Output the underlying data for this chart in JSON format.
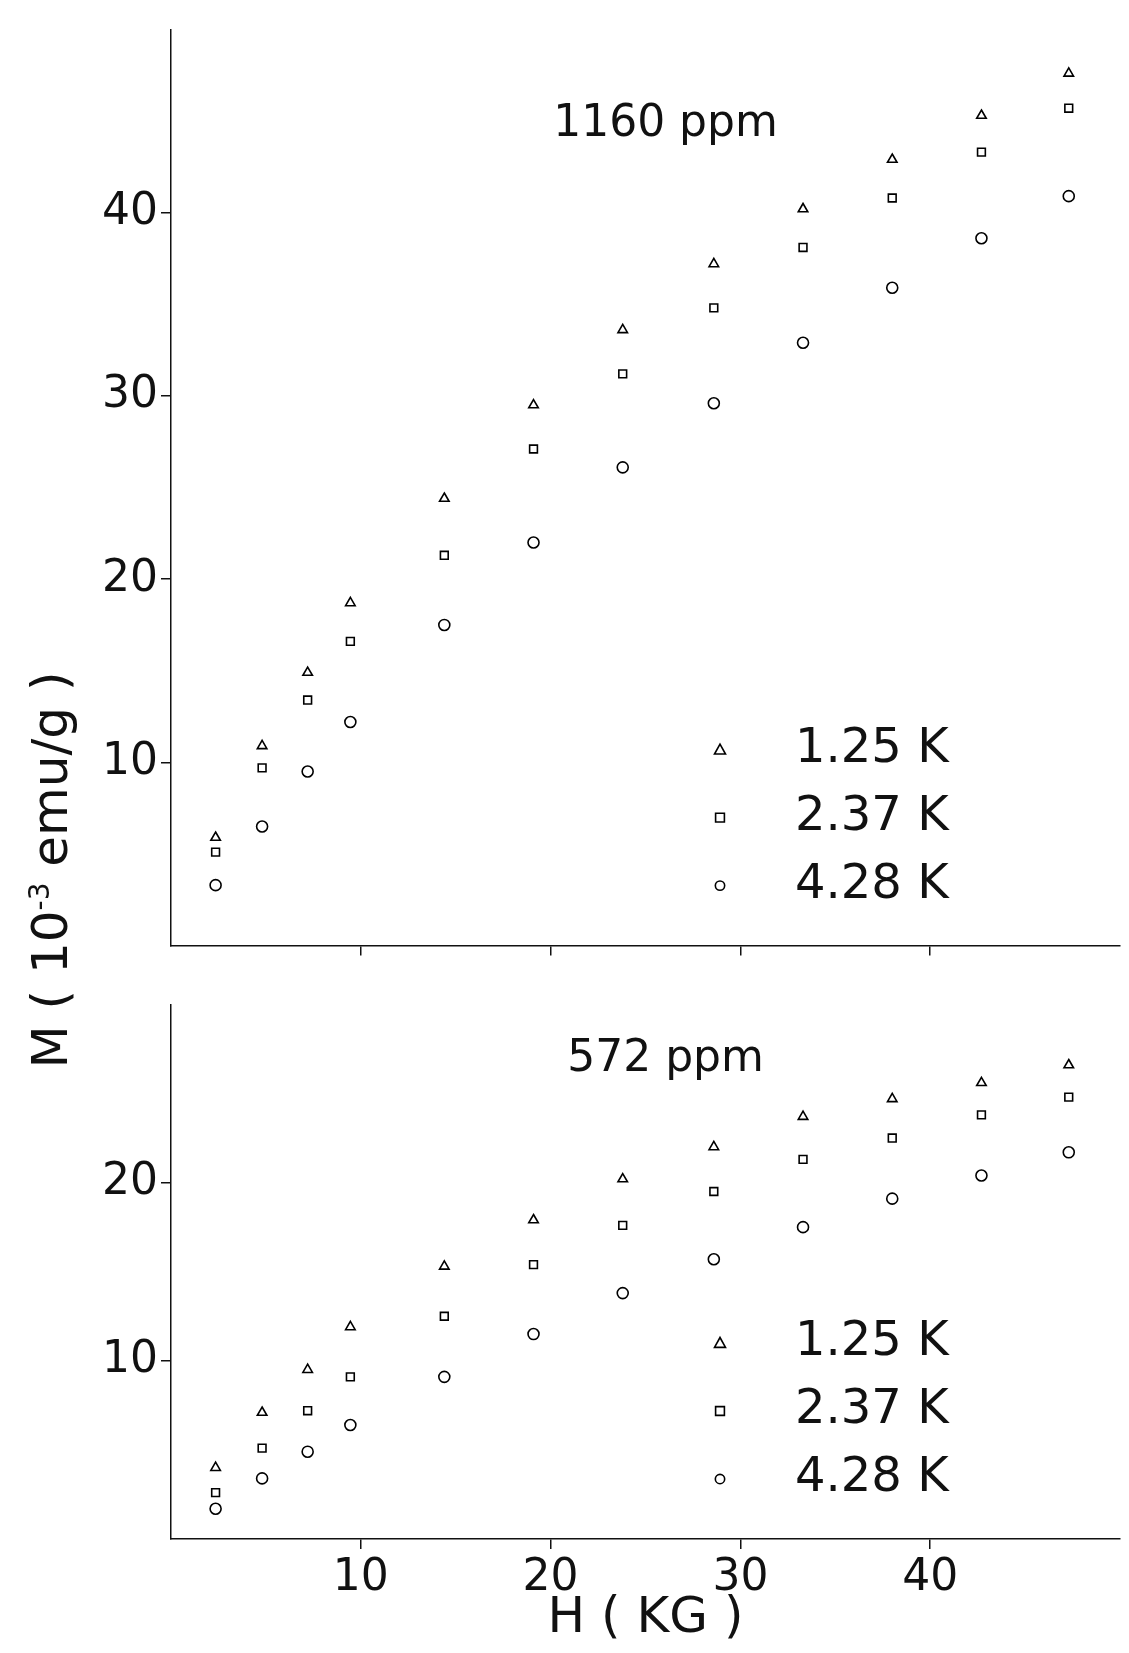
{
  "chart_data": [
    {
      "type": "scatter",
      "title": "1160 ppm",
      "ylabel": "M ( 10$^{-3}$ emu/g )",
      "xlim": [
        0,
        50
      ],
      "xticks": [
        10,
        20,
        30,
        40
      ],
      "ylim": [
        0,
        50
      ],
      "yticks": [
        10,
        20,
        30,
        40
      ],
      "tick_labels": "y",
      "legend": "bottom right",
      "grid": false,
      "x": [
        2.35,
        4.8,
        7.2,
        9.45,
        14.4,
        19.1,
        23.8,
        28.6,
        33.3,
        38.0,
        42.7,
        47.3
      ],
      "series": [
        {
          "name": "1.25 K",
          "color": "#000000",
          "marker": "triangle",
          "values": [
            5.9,
            10.9,
            14.9,
            18.7,
            24.4,
            29.5,
            33.6,
            37.2,
            40.2,
            42.9,
            45.3,
            47.6
          ]
        },
        {
          "name": "2.37 K",
          "color": "#000000",
          "marker": "square",
          "values": [
            5.1,
            9.7,
            13.4,
            16.6,
            21.3,
            27.1,
            31.2,
            34.8,
            38.1,
            40.8,
            43.3,
            45.7
          ]
        },
        {
          "name": "4.28 K",
          "color": "#000000",
          "marker": "circle",
          "values": [
            3.3,
            6.5,
            9.5,
            12.2,
            17.5,
            22.0,
            26.1,
            29.6,
            32.9,
            35.9,
            38.6,
            40.9
          ]
        }
      ]
    },
    {
      "type": "scatter",
      "title": "572 ppm",
      "xlabel": "H ( KG )",
      "xlim": [
        0,
        50
      ],
      "xticks": [
        10,
        20,
        30,
        40
      ],
      "ylim": [
        0,
        30
      ],
      "yticks": [
        10,
        20
      ],
      "legend": "bottom right",
      "grid": false,
      "x": [
        2.35,
        4.8,
        7.2,
        9.45,
        14.4,
        19.1,
        23.8,
        28.6,
        33.3,
        38.0,
        42.7,
        47.3
      ],
      "series": [
        {
          "name": "1.25 K",
          "color": "#000000",
          "marker": "triangle",
          "values": [
            4.0,
            7.1,
            9.5,
            11.9,
            15.3,
            17.9,
            20.2,
            22.0,
            23.7,
            24.7,
            25.6,
            26.6
          ]
        },
        {
          "name": "2.37 K",
          "color": "#000000",
          "marker": "square",
          "values": [
            2.6,
            5.1,
            7.2,
            9.1,
            12.5,
            15.4,
            17.6,
            19.5,
            21.3,
            22.5,
            23.8,
            24.8
          ]
        },
        {
          "name": "4.28 K",
          "color": "#000000",
          "marker": "circle",
          "values": [
            1.7,
            3.4,
            4.9,
            6.4,
            9.1,
            11.5,
            13.8,
            15.7,
            17.5,
            19.1,
            20.4,
            21.7
          ]
        }
      ]
    }
  ]
}
